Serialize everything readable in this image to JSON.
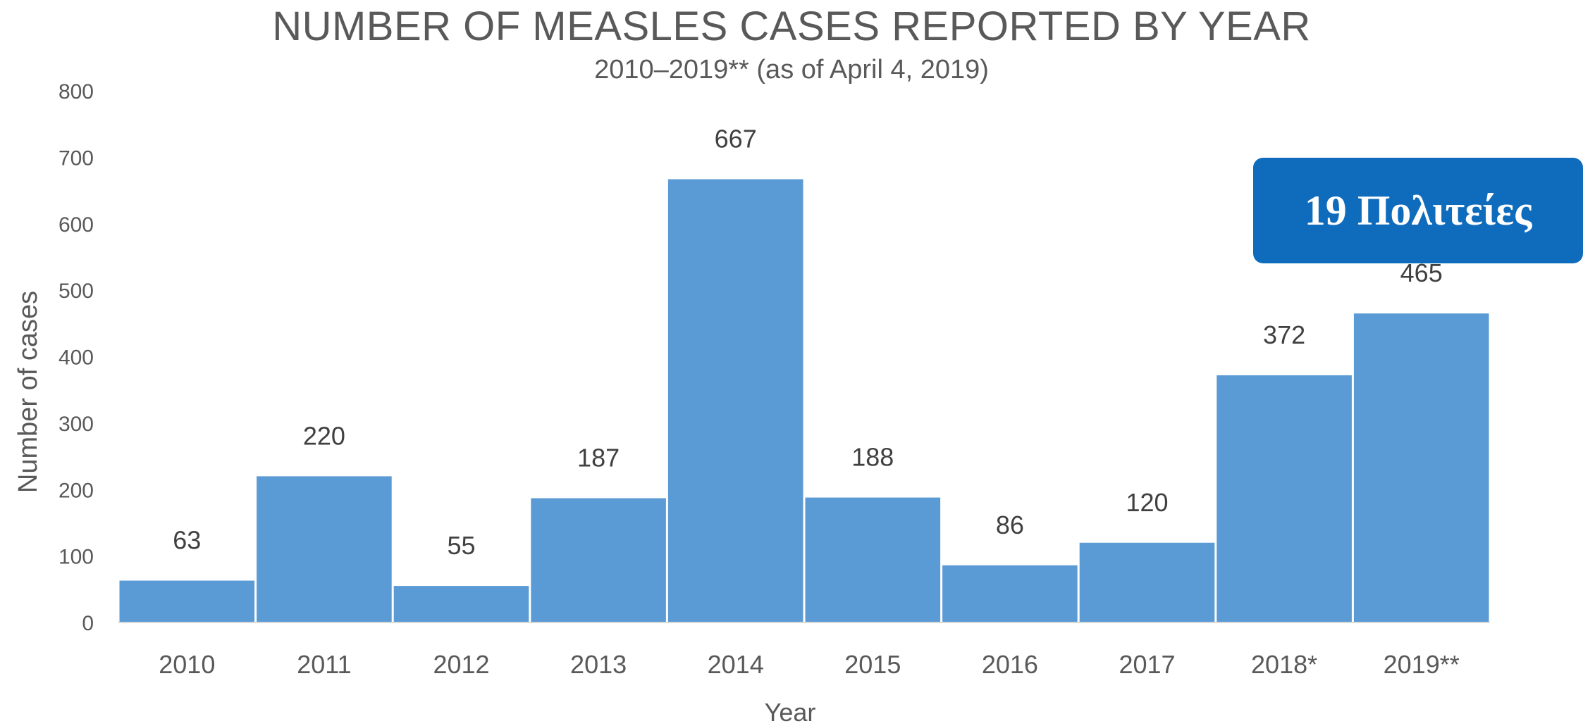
{
  "chart_data": {
    "type": "bar",
    "title": "NUMBER OF MEASLES CASES REPORTED BY YEAR",
    "subtitle": "2010–2019** (as of April 4, 2019)",
    "xlabel": "Year",
    "ylabel": "Number of cases",
    "ylim": [
      0,
      800
    ],
    "yticks": [
      0,
      100,
      200,
      300,
      400,
      500,
      600,
      700,
      800
    ],
    "grid": false,
    "categories": [
      "2010",
      "2011",
      "2012",
      "2013",
      "2014",
      "2015",
      "2016",
      "2017",
      "2018*",
      "2019**"
    ],
    "values": [
      63,
      220,
      55,
      187,
      667,
      188,
      86,
      120,
      372,
      465
    ],
    "bar_color": "#5b9bd5"
  },
  "annotation": {
    "badge_text": "19 Πολιτείες",
    "badge_color": "#0f6cbd"
  }
}
